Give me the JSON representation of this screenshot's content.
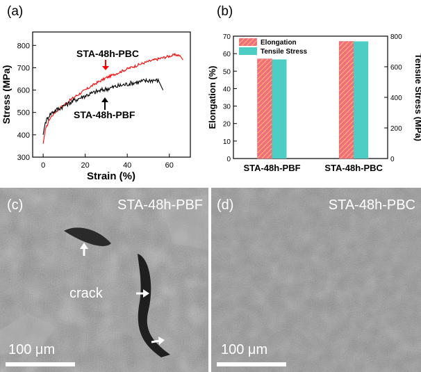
{
  "panels": {
    "a": "(a)",
    "b": "(b)",
    "c": "(c)",
    "d": "(d)"
  },
  "chart_data": [
    {
      "type": "line",
      "xlabel": "Strain (%)",
      "ylabel": "Stress (MPa)",
      "xlim": [
        -5,
        70
      ],
      "ylim": [
        300,
        860
      ],
      "x_ticks": [
        0,
        20,
        40,
        60
      ],
      "y_ticks": [
        300,
        400,
        500,
        600,
        700,
        800
      ],
      "grid": false,
      "series": [
        {
          "name": "STA-48h-PBC",
          "color": "#ff0000",
          "x": [
            0,
            1,
            3,
            5,
            10,
            15,
            20,
            25,
            30,
            35,
            40,
            45,
            50,
            55,
            60,
            63,
            65,
            66.5
          ],
          "y": [
            360,
            420,
            470,
            495,
            535,
            570,
            600,
            630,
            655,
            675,
            695,
            712,
            728,
            740,
            752,
            758,
            755,
            735
          ]
        },
        {
          "name": "STA-48h-PBF",
          "color": "#000000",
          "x": [
            0,
            1,
            3,
            5,
            10,
            15,
            20,
            25,
            30,
            35,
            40,
            45,
            50,
            53,
            55,
            57
          ],
          "y": [
            400,
            455,
            490,
            505,
            530,
            555,
            575,
            592,
            605,
            617,
            627,
            636,
            643,
            645,
            640,
            600
          ]
        }
      ],
      "annotations": [
        "STA-48h-PBC",
        "STA-48h-PBF"
      ]
    },
    {
      "type": "bar",
      "categories": [
        "STA-48h-PBF",
        "STA-48h-PBC"
      ],
      "ylabel": "Elongation (%)",
      "y2label": "Tensile Stress (MPa)",
      "ylim": [
        0,
        70
      ],
      "y2lim": [
        0,
        800
      ],
      "y_ticks": [
        0,
        10,
        20,
        30,
        40,
        50,
        60,
        70
      ],
      "y2_ticks": [
        0,
        200,
        400,
        600,
        800
      ],
      "legend": "top-left",
      "series": [
        {
          "name": "Elongation",
          "axis": "left",
          "color": "#f26d7d",
          "values": [
            57,
            67
          ]
        },
        {
          "name": "Tensile Stress",
          "axis": "right",
          "color": "#4ecdc4",
          "values": [
            648,
            766
          ]
        }
      ]
    }
  ],
  "sem": {
    "c": {
      "title": "STA-48h-PBF",
      "scale": "100 μm",
      "crack_label": "crack"
    },
    "d": {
      "title": "STA-48h-PBC",
      "scale": "100 μm"
    }
  }
}
